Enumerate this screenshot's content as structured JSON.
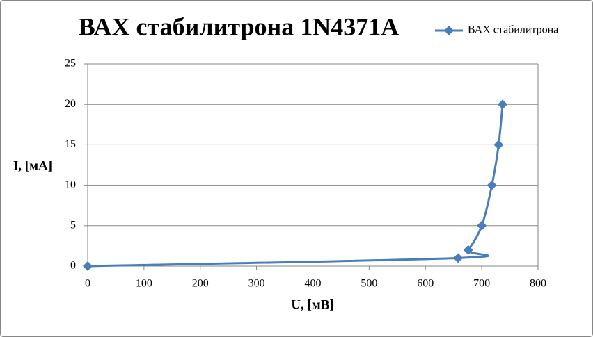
{
  "chart_data": {
    "type": "scatter",
    "title": "ВАХ стабилитрона 1N4371A",
    "x_label": "U, [мВ]",
    "y_label": "I, [мА]",
    "series": [
      {
        "name": "ВАХ стабилитрона",
        "color": "#4a7ebb",
        "x": [
          0,
          658,
          676,
          700,
          718,
          730,
          737
        ],
        "values": [
          0,
          1,
          2,
          5,
          10,
          15,
          20
        ]
      }
    ],
    "xlim": [
      0,
      800
    ],
    "xticks": [
      0,
      100,
      200,
      300,
      400,
      500,
      600,
      700,
      800
    ],
    "ylim": [
      0,
      25
    ],
    "yticks": [
      0,
      5,
      10,
      15,
      20,
      25
    ],
    "grid": true,
    "legend": "top-right",
    "smooth": true
  }
}
